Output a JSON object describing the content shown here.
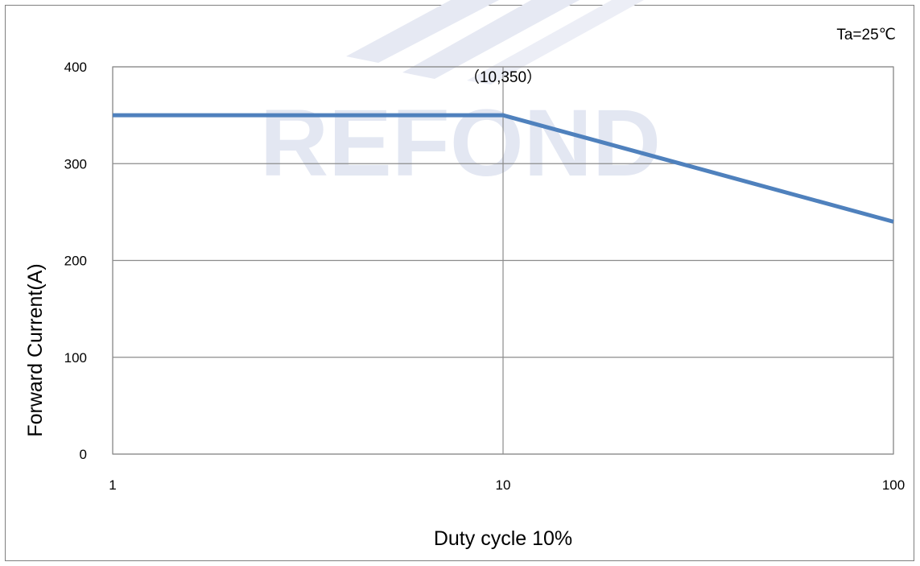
{
  "chart_data": {
    "type": "line",
    "x_scale": "log",
    "xlim": [
      1,
      100
    ],
    "ylim": [
      0,
      400
    ],
    "x_ticks": [
      1,
      10,
      100
    ],
    "y_ticks": [
      0,
      100,
      200,
      300,
      400
    ],
    "x_tick_labels": [
      "1",
      "10",
      "100"
    ],
    "y_tick_labels": [
      "0",
      "100",
      "200",
      "300",
      "400"
    ],
    "xlabel": "Duty cycle 10%",
    "ylabel": "Forward Current(A)",
    "grid": true,
    "condition_label": "Ta=25℃",
    "annotation": {
      "text": "（10,350）",
      "x": 10,
      "y": 350
    },
    "series": [
      {
        "x": [
          1,
          10,
          100
        ],
        "y": [
          350,
          350,
          240
        ],
        "color": "#4f81bd"
      }
    ]
  },
  "watermark": {
    "text": "REFOND",
    "color": "#e3e7f2"
  }
}
